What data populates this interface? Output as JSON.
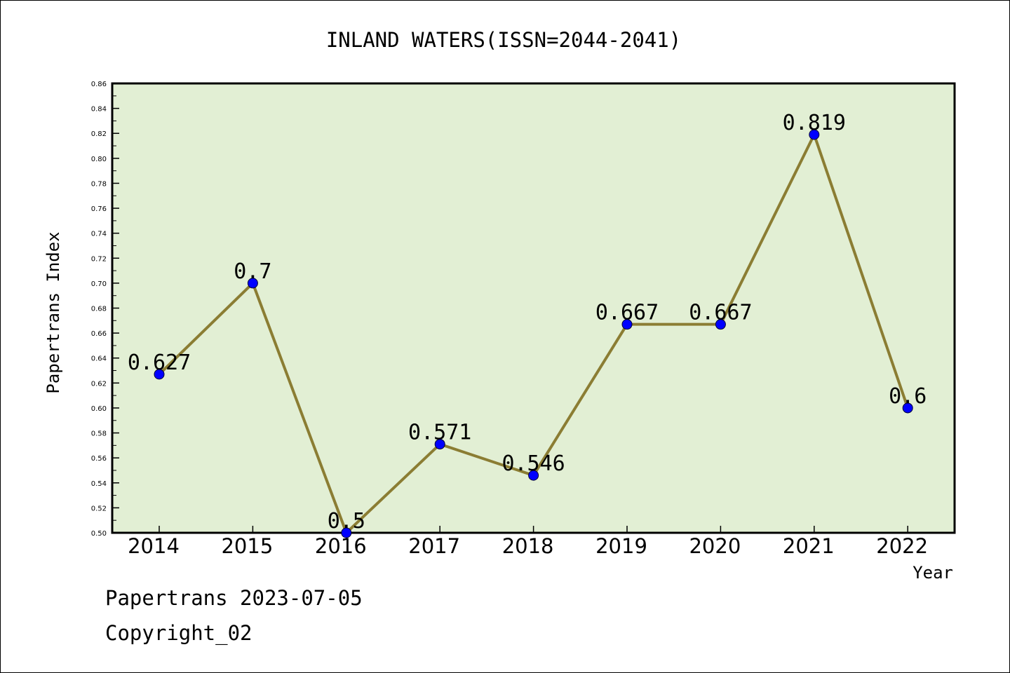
{
  "chart_data": {
    "type": "line",
    "title": "INLAND WATERS(ISSN=2044-2041)",
    "xlabel": "Year",
    "ylabel": "Papertrans Index",
    "categories": [
      "2014",
      "2015",
      "2016",
      "2017",
      "2018",
      "2019",
      "2020",
      "2021",
      "2022"
    ],
    "series": [
      {
        "values": [
          0.627,
          0.7,
          0.5,
          0.571,
          0.546,
          0.667,
          0.667,
          0.819,
          0.6
        ],
        "labels": [
          "0.627",
          "0.7",
          "0.5",
          "0.571",
          "0.546",
          "0.667",
          "0.667",
          "0.819",
          "0.6"
        ],
        "line_color": "#8b7d33",
        "marker_color": "#0000ff"
      }
    ],
    "ylim": [
      0.5,
      0.86
    ],
    "yticks": [
      "0.50",
      "0.52",
      "0.54",
      "0.56",
      "0.58",
      "0.60",
      "0.62",
      "0.64",
      "0.66",
      "0.68",
      "0.70",
      "0.72",
      "0.74",
      "0.76",
      "0.78",
      "0.80",
      "0.82",
      "0.84",
      "0.86"
    ],
    "plot_background": "#e2efd4",
    "grid": false,
    "legend": "none"
  },
  "footer": {
    "line1": "Papertrans 2023-07-05",
    "line2": "Copyright_02"
  }
}
